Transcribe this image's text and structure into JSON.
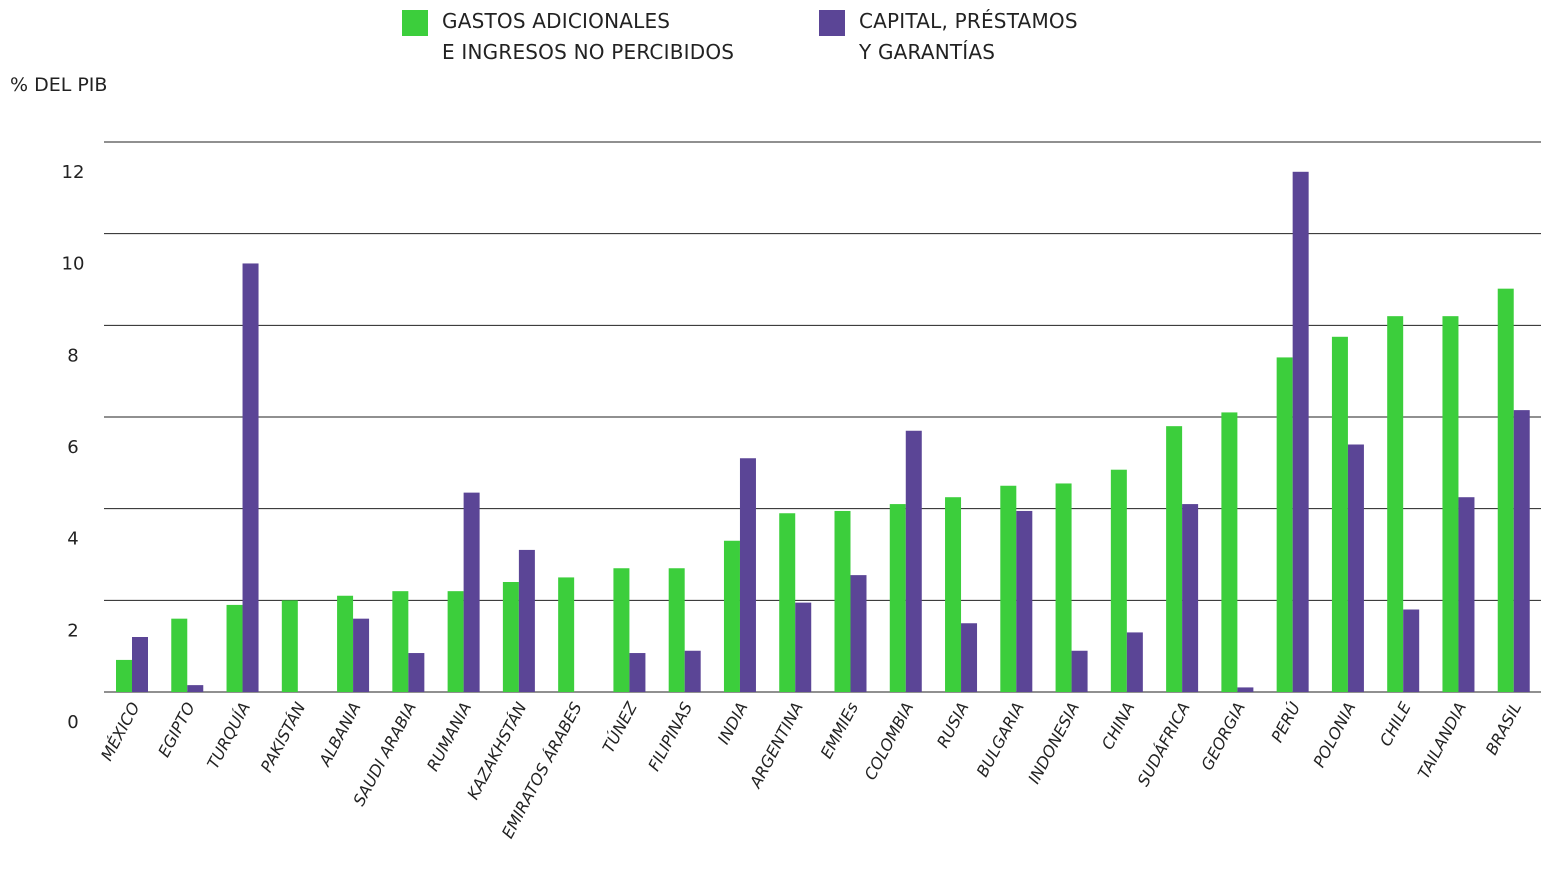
{
  "chart_data": {
    "type": "bar",
    "title": "",
    "xlabel": "",
    "ylabel": "% DEL PIB",
    "ylim": [
      0,
      12
    ],
    "yticks": [
      0,
      2,
      4,
      6,
      8,
      10,
      12
    ],
    "grid": true,
    "legend_position": "top-center",
    "categories": [
      "MÉXICO",
      "EGIPTO",
      "TURQUÍA",
      "PAKISTÁN",
      "ALBANIA",
      "SAUDI ARABIA",
      "RUMANIA",
      "KAZAKHSTÁN",
      "EMIRATOS ÁRABES",
      "TÚNEZ",
      "FILIPINAS",
      "INDIA",
      "ARGENTINA",
      "EMMIEs",
      "COLOMBIA",
      "RUSIA",
      "BULGARIA",
      "INDONESIA",
      "CHINA",
      "SUDÁFRICA",
      "GEORGIA",
      "PERÚ",
      "POLONIA",
      "CHILE",
      "TAILANDIA",
      "BRASIL"
    ],
    "series": [
      {
        "name_line1": "GASTOS ADICIONALES",
        "name_line2": "E INGRESOS NO PERCIBIDOS",
        "color": "#3cce3c",
        "values": [
          0.7,
          1.6,
          1.9,
          2.0,
          2.1,
          2.2,
          2.2,
          2.4,
          2.5,
          2.7,
          2.7,
          3.3,
          3.9,
          3.95,
          4.1,
          4.25,
          4.5,
          4.55,
          4.85,
          5.8,
          6.1,
          7.3,
          7.75,
          8.2,
          8.2,
          8.8
        ]
      },
      {
        "name_line1": "CAPITAL, PRÉSTAMOS",
        "name_line2": "Y GARANTÍAS",
        "color": "#5b4596",
        "values": [
          1.2,
          0.15,
          9.35,
          0,
          1.6,
          0.85,
          4.35,
          3.1,
          0,
          0.85,
          0.9,
          5.1,
          1.95,
          2.55,
          5.7,
          1.5,
          3.95,
          0.9,
          1.3,
          4.1,
          0.1,
          11.35,
          5.4,
          1.8,
          4.25,
          6.15
        ]
      }
    ]
  }
}
